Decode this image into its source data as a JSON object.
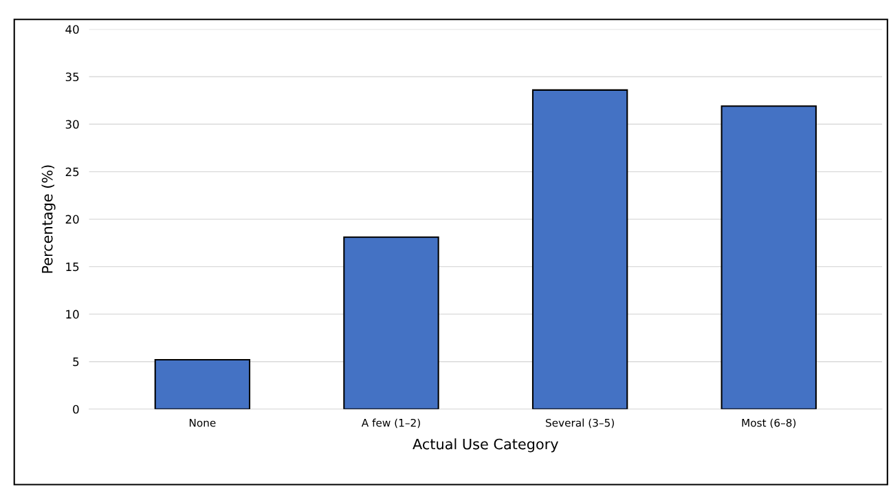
{
  "chart_data": {
    "type": "bar",
    "xlabel": "Actual Use Category",
    "ylabel": "Percentage (%)",
    "categories": [
      "None",
      "A few (1–2)",
      "Several (3–5)",
      "Most (6–8)"
    ],
    "values": [
      5.2,
      18.1,
      33.6,
      31.9
    ],
    "color": "#4472c4",
    "ylim": [
      0,
      40
    ],
    "yticks": [
      0,
      5,
      10,
      15,
      20,
      25,
      30,
      35,
      40
    ],
    "grid": "y"
  }
}
